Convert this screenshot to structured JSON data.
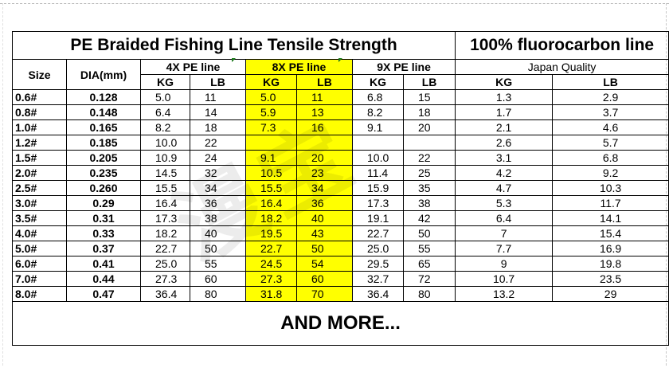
{
  "title": "PE Braided Fishing Line Tensile Strength",
  "title_right": "100% fluorocarbon line",
  "headers": {
    "size": "Size",
    "dia": "DIA(mm)",
    "group_4x": "4X PE line",
    "group_8x": "8X PE line",
    "group_9x": "9X PE line",
    "group_fluoro": "Japan Quality",
    "kg": "KG",
    "lb": "LB"
  },
  "rows": [
    {
      "size": "0.6#",
      "dia": "0.128",
      "kg4": "5.0",
      "lb4": "11",
      "kg8": "5.0",
      "lb8": "11",
      "kg9": "6.8",
      "lb9": "15",
      "kgf": "1.3",
      "lbf": "2.9"
    },
    {
      "size": "0.8#",
      "dia": "0.148",
      "kg4": "6.4",
      "lb4": "14",
      "kg8": "5.9",
      "lb8": "13",
      "kg9": "8.2",
      "lb9": "18",
      "kgf": "1.7",
      "lbf": "3.7"
    },
    {
      "size": "1.0#",
      "dia": "0.165",
      "kg4": "8.2",
      "lb4": "18",
      "kg8": "7.3",
      "lb8": "16",
      "kg9": "9.1",
      "lb9": "20",
      "kgf": "2.1",
      "lbf": "4.6"
    },
    {
      "size": "1.2#",
      "dia": "0.185",
      "kg4": "10.0",
      "lb4": "22",
      "kg8": "",
      "lb8": "",
      "kg9": "",
      "lb9": "",
      "kgf": "2.6",
      "lbf": "5.7"
    },
    {
      "size": "1.5#",
      "dia": "0.205",
      "kg4": "10.9",
      "lb4": "24",
      "kg8": "9.1",
      "lb8": "20",
      "kg9": "10.0",
      "lb9": "22",
      "kgf": "3.1",
      "lbf": "6.8"
    },
    {
      "size": "2.0#",
      "dia": "0.235",
      "kg4": "14.5",
      "lb4": "32",
      "kg8": "10.5",
      "lb8": "23",
      "kg9": "11.4",
      "lb9": "25",
      "kgf": "4.2",
      "lbf": "9.2"
    },
    {
      "size": "2.5#",
      "dia": "0.260",
      "kg4": "15.5",
      "lb4": "34",
      "kg8": "15.5",
      "lb8": "34",
      "kg9": "15.9",
      "lb9": "35",
      "kgf": "4.7",
      "lbf": "10.3"
    },
    {
      "size": "3.0#",
      "dia": "0.29",
      "kg4": "16.4",
      "lb4": "36",
      "kg8": "16.4",
      "lb8": "36",
      "kg9": "17.3",
      "lb9": "38",
      "kgf": "5.3",
      "lbf": "11.7"
    },
    {
      "size": "3.5#",
      "dia": "0.31",
      "kg4": "17.3",
      "lb4": "38",
      "kg8": "18.2",
      "lb8": "40",
      "kg9": "19.1",
      "lb9": "42",
      "kgf": "6.4",
      "lbf": "14.1"
    },
    {
      "size": "4.0#",
      "dia": "0.33",
      "kg4": "18.2",
      "lb4": "40",
      "kg8": "19.5",
      "lb8": "43",
      "kg9": "22.7",
      "lb9": "50",
      "kgf": "7",
      "lbf": "15.4"
    },
    {
      "size": "5.0#",
      "dia": "0.37",
      "kg4": "22.7",
      "lb4": "50",
      "kg8": "22.7",
      "lb8": "50",
      "kg9": "25.0",
      "lb9": "55",
      "kgf": "7.7",
      "lbf": "16.9"
    },
    {
      "size": "6.0#",
      "dia": "0.41",
      "kg4": "25.0",
      "lb4": "55",
      "kg8": "24.5",
      "lb8": "54",
      "kg9": "29.5",
      "lb9": "65",
      "kgf": "9",
      "lbf": "19.8"
    },
    {
      "size": "7.0#",
      "dia": "0.44",
      "kg4": "27.3",
      "lb4": "60",
      "kg8": "27.3",
      "lb8": "60",
      "kg9": "32.7",
      "lb9": "72",
      "kgf": "10.7",
      "lbf": "23.5"
    },
    {
      "size": "8.0#",
      "dia": "0.47",
      "kg4": "36.4",
      "lb4": "80",
      "kg8": "31.8",
      "lb8": "70",
      "kg9": "36.4",
      "lb9": "80",
      "kgf": "13.2",
      "lbf": "29"
    }
  ],
  "footer": "AND MORE...",
  "colors": {
    "highlight": "#ffff00",
    "border": "#000000"
  }
}
